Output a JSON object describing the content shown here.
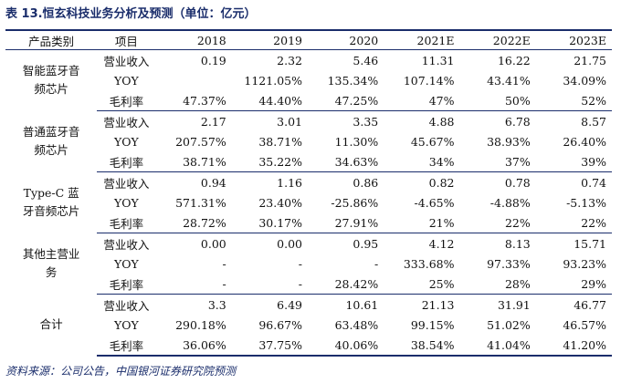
{
  "title": "表 13.恒玄科技业务分析及预测（单位：亿元）",
  "headers": [
    "产品类别",
    "项目",
    "2018",
    "2019",
    "2020",
    "2021E",
    "2022E",
    "2023E"
  ],
  "groups": [
    {
      "category": "智能蓝牙音频芯片",
      "rows": [
        {
          "item": "营业收入",
          "values": [
            "0.19",
            "2.32",
            "5.46",
            "11.31",
            "16.22",
            "21.75"
          ]
        },
        {
          "item": "YOY",
          "values": [
            "",
            "1121.05%",
            "135.34%",
            "107.14%",
            "43.41%",
            "34.09%"
          ]
        },
        {
          "item": "毛利率",
          "values": [
            "47.37%",
            "44.40%",
            "47.25%",
            "47%",
            "50%",
            "52%"
          ]
        }
      ]
    },
    {
      "category": "普通蓝牙音频芯片",
      "rows": [
        {
          "item": "营业收入",
          "values": [
            "2.17",
            "3.01",
            "3.35",
            "4.88",
            "6.78",
            "8.57"
          ]
        },
        {
          "item": "YOY",
          "values": [
            "207.57%",
            "38.71%",
            "11.30%",
            "45.67%",
            "38.93%",
            "26.40%"
          ]
        },
        {
          "item": "毛利率",
          "values": [
            "38.71%",
            "35.22%",
            "34.63%",
            "34%",
            "37%",
            "39%"
          ]
        }
      ]
    },
    {
      "category": "Type-C 蓝牙音频芯片",
      "rows": [
        {
          "item": "营业收入",
          "values": [
            "0.94",
            "1.16",
            "0.86",
            "0.82",
            "0.78",
            "0.74"
          ]
        },
        {
          "item": "YOY",
          "values": [
            "571.31%",
            "23.40%",
            "-25.86%",
            "-4.65%",
            "-4.88%",
            "-5.13%"
          ]
        },
        {
          "item": "毛利率",
          "values": [
            "28.72%",
            "30.17%",
            "27.91%",
            "21%",
            "22%",
            "22%"
          ]
        }
      ]
    },
    {
      "category": "其他主营业务",
      "rows": [
        {
          "item": "营业收入",
          "values": [
            "0.00",
            "0.00",
            "0.95",
            "4.12",
            "8.13",
            "15.71"
          ]
        },
        {
          "item": "YOY",
          "values": [
            "-",
            "-",
            "-",
            "333.68%",
            "97.33%",
            "93.23%"
          ]
        },
        {
          "item": "毛利率",
          "values": [
            "-",
            "-",
            "28.42%",
            "25%",
            "28%",
            "29%"
          ]
        }
      ]
    },
    {
      "category": "合计",
      "rows": [
        {
          "item": "营业收入",
          "values": [
            "3.3",
            "6.49",
            "10.61",
            "21.13",
            "31.91",
            "46.77"
          ]
        },
        {
          "item": "YOY",
          "values": [
            "290.18%",
            "96.67%",
            "63.48%",
            "99.15%",
            "51.02%",
            "46.57%"
          ]
        },
        {
          "item": "毛利率",
          "values": [
            "36.06%",
            "37.75%",
            "40.06%",
            "38.54%",
            "41.04%",
            "41.20%"
          ]
        }
      ]
    }
  ],
  "footnote": "资料来源：公司公告，中国银河证券研究院预测"
}
